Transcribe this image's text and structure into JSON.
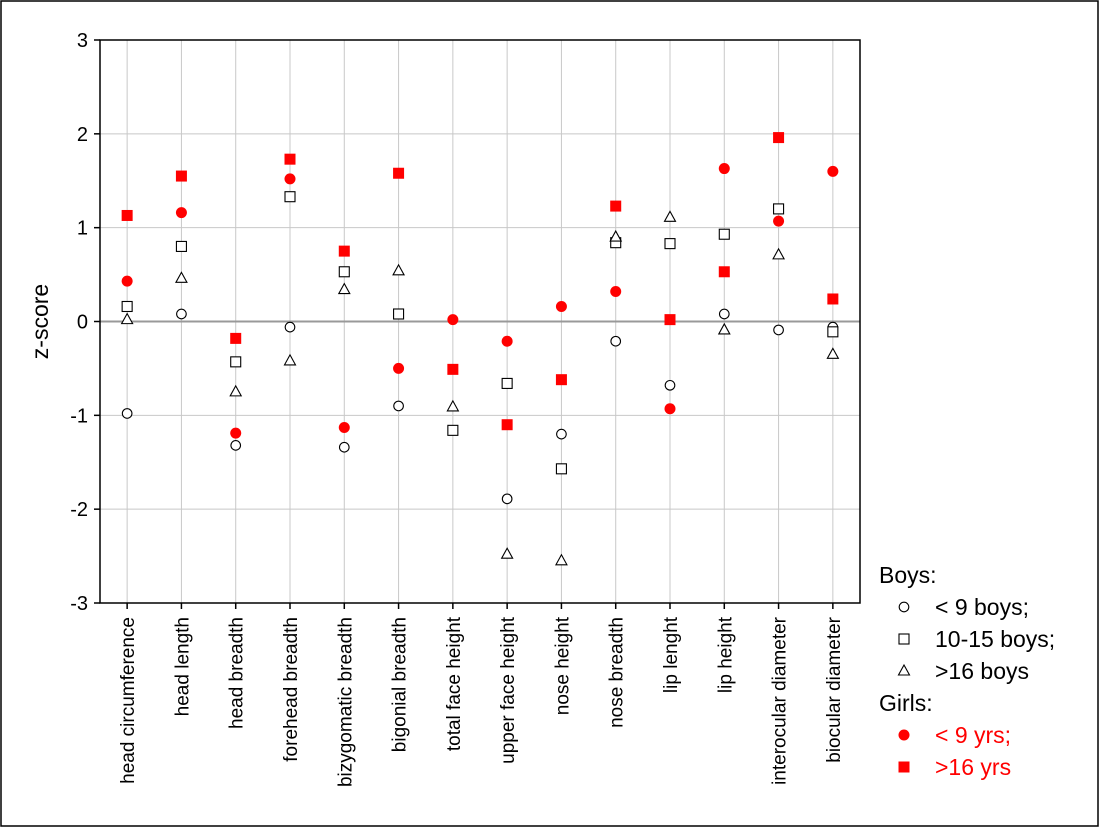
{
  "chart_data": {
    "type": "scatter",
    "title": "",
    "xlabel": "",
    "ylabel": "z-score",
    "ylim": [
      -3,
      3
    ],
    "yticks": [
      "-3",
      "-2",
      "-1",
      "0",
      "1",
      "2",
      "3"
    ],
    "grid": true,
    "legend_position": "right",
    "categories": [
      "head circumference",
      "head length",
      "head breadth",
      "forehead breadth",
      "bizygomatic breadth",
      "bigonial breadth",
      "total face height",
      "upper face height",
      "nose height",
      "nose breadth",
      "lip lenght",
      "lip height",
      "interocular diameter",
      "biocular diameter"
    ],
    "legend_groups": [
      {
        "title": "Boys:",
        "color": "#000000",
        "series": [
          0,
          1,
          2
        ]
      },
      {
        "title": "Girls:",
        "color": "#000000",
        "series": [
          3,
          4
        ]
      }
    ],
    "series": [
      {
        "name": "< 9 boys;",
        "marker": "circle-open",
        "color": "#000000",
        "values": [
          -0.98,
          0.08,
          -1.32,
          -0.06,
          -1.34,
          -0.9,
          null,
          -1.89,
          -1.2,
          -0.21,
          -0.68,
          0.08,
          -0.09,
          -0.06
        ]
      },
      {
        "name": "10-15 boys;",
        "marker": "square-open",
        "color": "#000000",
        "values": [
          0.16,
          0.8,
          -0.43,
          1.33,
          0.53,
          0.08,
          -1.16,
          -0.66,
          -1.57,
          0.84,
          0.83,
          0.93,
          1.2,
          -0.11
        ]
      },
      {
        "name": ">16 boys",
        "marker": "triangle-open",
        "color": "#000000",
        "values": [
          0.02,
          0.46,
          -0.75,
          -0.42,
          0.34,
          0.54,
          -0.91,
          -2.48,
          -2.55,
          0.9,
          1.11,
          -0.09,
          0.71,
          -0.35
        ]
      },
      {
        "name": "< 9 yrs;",
        "marker": "circle-filled",
        "color": "#ff0000",
        "values": [
          0.43,
          1.16,
          -1.19,
          1.52,
          -1.13,
          -0.5,
          0.02,
          -0.21,
          0.16,
          0.32,
          -0.93,
          1.63,
          1.07,
          1.6
        ]
      },
      {
        "name": ">16 yrs",
        "marker": "square-filled",
        "color": "#ff0000",
        "values": [
          1.13,
          1.55,
          -0.18,
          1.73,
          0.75,
          1.58,
          -0.51,
          -1.1,
          -0.62,
          1.23,
          0.02,
          0.53,
          1.96,
          0.24
        ]
      }
    ]
  }
}
